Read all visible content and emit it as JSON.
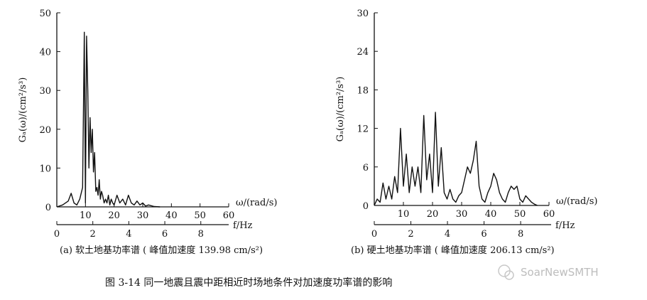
{
  "chart_data": [
    {
      "type": "line",
      "caption": "(a) 软土地基功率谱 ( 峰值加速度 139.98 cm/s²)",
      "ylabel": "Gₐ(ω)/(cm²/s³)",
      "ylim": [
        0,
        50
      ],
      "yticks": [
        "0",
        "10",
        "20",
        "30",
        "40",
        "50"
      ],
      "xlabel_omega": "ω/(rad/s)",
      "xlim_omega": [
        0,
        60
      ],
      "xticks_omega": [
        "10",
        "20",
        "30",
        "40",
        "50",
        "60"
      ],
      "xlabel_f": "f/Hz",
      "xticks_f": [
        "0",
        "2",
        "4",
        "6",
        "8"
      ],
      "x": [
        0,
        2,
        4,
        5,
        6,
        7,
        8,
        9,
        9.6,
        10,
        10.4,
        10.8,
        11.2,
        11.6,
        12,
        12.4,
        12.8,
        13.2,
        13.6,
        14,
        14.4,
        14.8,
        15.2,
        15.6,
        16,
        16.5,
        17,
        17.5,
        18,
        18.5,
        19,
        19.5,
        20,
        21,
        22,
        23,
        24,
        25,
        26,
        27,
        28,
        29,
        30,
        31,
        32,
        34,
        36
      ],
      "y": [
        0,
        0.5,
        1.5,
        3.5,
        1,
        0.5,
        2,
        5,
        45,
        1,
        44,
        30,
        10,
        23,
        14,
        20,
        9,
        14,
        4,
        5,
        3,
        7,
        2,
        4,
        3,
        1,
        2,
        1,
        3,
        0.5,
        2,
        1,
        0.5,
        3,
        1,
        2,
        0.5,
        3,
        1,
        0.5,
        1.5,
        0.5,
        1,
        0.2,
        0.5,
        0.1,
        0
      ]
    },
    {
      "type": "line",
      "caption": "(b) 硬土地基功率谱 ( 峰值加速度 206.13 cm/s²)",
      "ylabel": "Gₐ(ω)/(cm²/s³)",
      "ylim": [
        0,
        30
      ],
      "yticks": [
        "0",
        "6",
        "12",
        "18",
        "24",
        "30"
      ],
      "xlabel_omega": "ω/(rad/s)",
      "xlim_omega": [
        0,
        60
      ],
      "xticks_omega": [
        "10",
        "20",
        "30",
        "40",
        "50",
        "60"
      ],
      "xlabel_f": "f/Hz",
      "xticks_f": [
        "0",
        "2",
        "4",
        "6",
        "8"
      ],
      "x": [
        0,
        1,
        2,
        3,
        4,
        5,
        6,
        7,
        8,
        9,
        10,
        11,
        12,
        13,
        14,
        15,
        16,
        17,
        18,
        19,
        20,
        21,
        22,
        23,
        24,
        25,
        26,
        27,
        28,
        29,
        30,
        31,
        32,
        33,
        34,
        35,
        36,
        37,
        38,
        39,
        40,
        41,
        42,
        43,
        44,
        45,
        46,
        47,
        48,
        49,
        50,
        51,
        52,
        53,
        54,
        55,
        56
      ],
      "y": [
        0,
        1,
        0.5,
        3.5,
        1,
        3,
        1,
        4.5,
        2,
        12,
        3,
        8,
        2,
        6,
        3,
        6,
        2,
        14,
        4,
        8,
        2,
        14.5,
        3,
        9,
        2,
        1,
        2.5,
        1,
        0.5,
        1.5,
        2,
        4,
        6,
        5,
        7,
        10,
        3,
        1,
        0.5,
        2,
        3,
        5,
        4,
        2,
        1,
        0.5,
        2,
        3,
        2.5,
        3,
        1,
        0.5,
        1.5,
        1,
        0.5,
        0.2,
        0
      ]
    }
  ],
  "figure_caption": "图 3-14   同一地震且震中距相近时场地条件对加速度功率谱的影响",
  "watermark": "SoarNewSMTH"
}
